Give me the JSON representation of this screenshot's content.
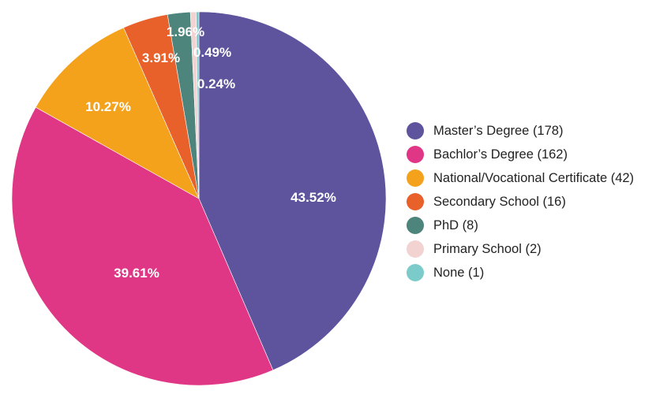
{
  "chart_data": {
    "type": "pie",
    "title": "",
    "legend_position": "right",
    "slices": [
      {
        "label": "Master’s Degree (178)",
        "category": "Master’s Degree",
        "count": 178,
        "percent_label": "43.52%",
        "value": 43.52,
        "color": "#5e549e"
      },
      {
        "label": "Bachlor’s Degree (162)",
        "category": "Bachlor’s Degree",
        "count": 162,
        "percent_label": "39.61%",
        "value": 39.61,
        "color": "#e03686"
      },
      {
        "label": "National/Vocational Certificate (42)",
        "category": "National/Vocational Certificate",
        "count": 42,
        "percent_label": "10.27%",
        "value": 10.27,
        "color": "#f4a21c"
      },
      {
        "label": "Secondary School (16)",
        "category": "Secondary School",
        "count": 16,
        "percent_label": "3.91%",
        "value": 3.91,
        "color": "#e8602a"
      },
      {
        "label": "PhD (8)",
        "category": "PhD",
        "count": 8,
        "percent_label": "1.96%",
        "value": 1.96,
        "color": "#4d857d"
      },
      {
        "label": "Primary School (2)",
        "category": "Primary School",
        "count": 2,
        "percent_label": "0.49%",
        "value": 0.49,
        "color": "#f3d2d2"
      },
      {
        "label": "None (1)",
        "category": "None",
        "count": 1,
        "percent_label": "0.24%",
        "value": 0.24,
        "color": "#7ccbcb"
      }
    ]
  }
}
